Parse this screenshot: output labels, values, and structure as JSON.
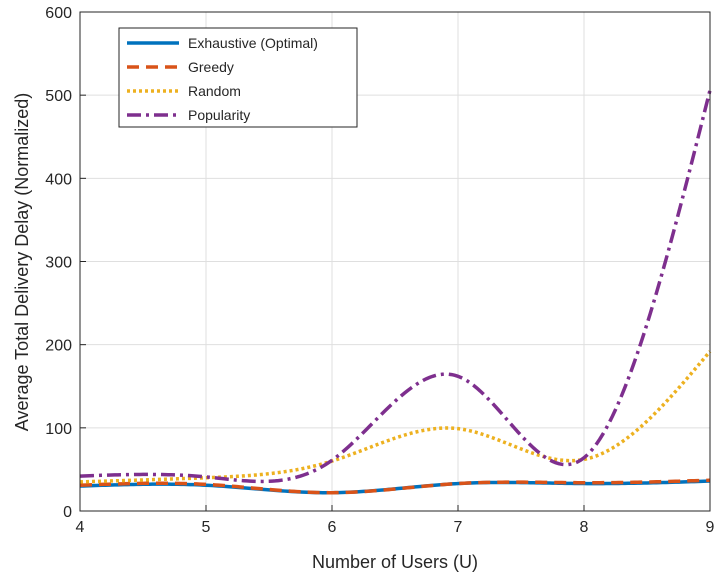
{
  "chart_data": {
    "type": "line",
    "title": "",
    "xlabel": "Number of Users (U)",
    "ylabel": "Average Total Delivery Delay (Normalized)",
    "xlim": [
      4,
      9
    ],
    "ylim": [
      0,
      600
    ],
    "xticks": [
      4,
      5,
      6,
      7,
      8,
      9
    ],
    "yticks": [
      0,
      100,
      200,
      300,
      400,
      500,
      600
    ],
    "grid": true,
    "legend_position": "top-left",
    "x": [
      4,
      5,
      6,
      7,
      8,
      9
    ],
    "series": [
      {
        "name": "Exhaustive (Optimal)",
        "color": "#0072BD",
        "style": "solid",
        "values": [
          30,
          31,
          22,
          33,
          33,
          36
        ]
      },
      {
        "name": "Greedy",
        "color": "#D95319",
        "style": "dashed",
        "values": [
          31,
          32,
          22,
          33,
          34,
          37
        ]
      },
      {
        "name": "Random",
        "color": "#EDB120",
        "style": "dotted",
        "values": [
          35,
          40,
          60,
          99,
          62,
          192
        ]
      },
      {
        "name": "Popularity",
        "color": "#7E2F8E",
        "style": "dashdot",
        "values": [
          42,
          41,
          61,
          162,
          64,
          506
        ]
      }
    ]
  }
}
